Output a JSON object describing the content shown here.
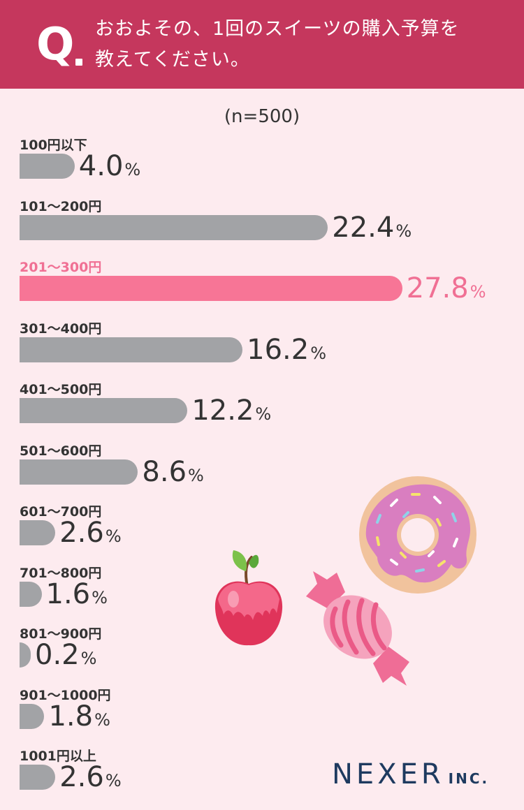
{
  "header": {
    "q_letter": "Q",
    "question_line1": "おおよその、1回のスイーツの購入予算を",
    "question_line2": "教えてください。"
  },
  "sample_size": "(n=500)",
  "chart_data": {
    "type": "bar",
    "orientation": "horizontal",
    "categories": [
      "100円以下",
      "101〜200円",
      "201〜300円",
      "301〜400円",
      "401〜500円",
      "501〜600円",
      "601〜700円",
      "701〜800円",
      "801〜900円",
      "901〜1000円",
      "1001円以上"
    ],
    "values": [
      4.0,
      22.4,
      27.8,
      16.2,
      12.2,
      8.6,
      2.6,
      1.6,
      0.2,
      1.8,
      2.6
    ],
    "value_labels": [
      "4.0",
      "22.4",
      "27.8",
      "16.2",
      "12.2",
      "8.6",
      "2.6",
      "1.6",
      "0.2",
      "1.8",
      "2.6"
    ],
    "unit": "%",
    "highlight_index": 2,
    "colors": {
      "bar": "#a2a3a6",
      "highlight": "#f77596",
      "highlight_text": "#f07094"
    }
  },
  "illustrations": [
    "donut-icon",
    "apple-icon",
    "candy-icon"
  ],
  "logo": {
    "main": "NEXER",
    "suffix": "INC."
  },
  "colors": {
    "header_bg": "#c5375d",
    "page_bg": "#fdebef"
  }
}
